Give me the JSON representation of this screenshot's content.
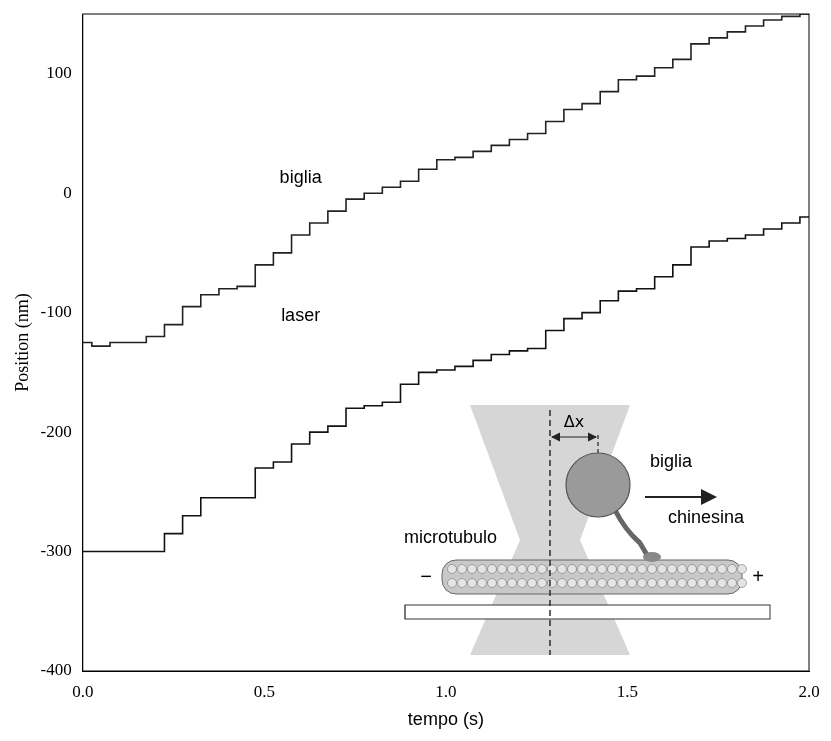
{
  "chart_data": {
    "type": "line",
    "x_label": "tempo (s)",
    "y_label": "Position (nm)",
    "x": [
      0,
      0.05,
      0.1,
      0.15,
      0.2,
      0.25,
      0.3,
      0.35,
      0.4,
      0.45,
      0.5,
      0.55,
      0.6,
      0.65,
      0.7,
      0.75,
      0.8,
      0.85,
      0.9,
      0.95,
      1.0,
      1.05,
      1.1,
      1.15,
      1.2,
      1.25,
      1.3,
      1.35,
      1.4,
      1.45,
      1.5,
      1.55,
      1.6,
      1.65,
      1.7,
      1.75,
      1.8,
      1.85,
      1.9,
      1.95,
      2.0
    ],
    "series": [
      {
        "name": "biglia",
        "color": "#222222",
        "line_style": "steps",
        "values": [
          -125,
          -128,
          -125,
          -125,
          -120,
          -110,
          -95,
          -85,
          -80,
          -78,
          -60,
          -50,
          -35,
          -25,
          -15,
          -5,
          0,
          5,
          10,
          20,
          28,
          30,
          35,
          40,
          45,
          50,
          60,
          70,
          75,
          85,
          95,
          98,
          105,
          112,
          125,
          130,
          135,
          140,
          145,
          148,
          150
        ]
      },
      {
        "name": "laser",
        "color": "#111111",
        "line_style": "steps",
        "values": [
          -300,
          -300,
          -300,
          -300,
          -300,
          -285,
          -270,
          -255,
          -255,
          -255,
          -230,
          -225,
          -210,
          -200,
          -195,
          -180,
          -178,
          -175,
          -160,
          -150,
          -148,
          -145,
          -140,
          -135,
          -132,
          -130,
          -115,
          -105,
          -100,
          -90,
          -82,
          -80,
          -70,
          -60,
          -45,
          -40,
          -38,
          -35,
          -30,
          -25,
          -20
        ]
      }
    ],
    "xlim": [
      0,
      2
    ],
    "xticks": [
      {
        "value": 0,
        "label": "0.0"
      },
      {
        "value": 0.5,
        "label": "0.5"
      },
      {
        "value": 1,
        "label": "1.0"
      },
      {
        "value": 1.5,
        "label": "1.5"
      },
      {
        "value": 2,
        "label": "2.0"
      }
    ],
    "ylim": [
      -400,
      150
    ],
    "yticks": [
      -400,
      -300,
      -200,
      -100,
      0,
      100
    ],
    "grid": false,
    "inset": {
      "delta": "Δx",
      "bead": "biglia",
      "motor": "chinesina",
      "track": "microtubulo",
      "minus_end": "−",
      "plus_end": "+"
    }
  }
}
